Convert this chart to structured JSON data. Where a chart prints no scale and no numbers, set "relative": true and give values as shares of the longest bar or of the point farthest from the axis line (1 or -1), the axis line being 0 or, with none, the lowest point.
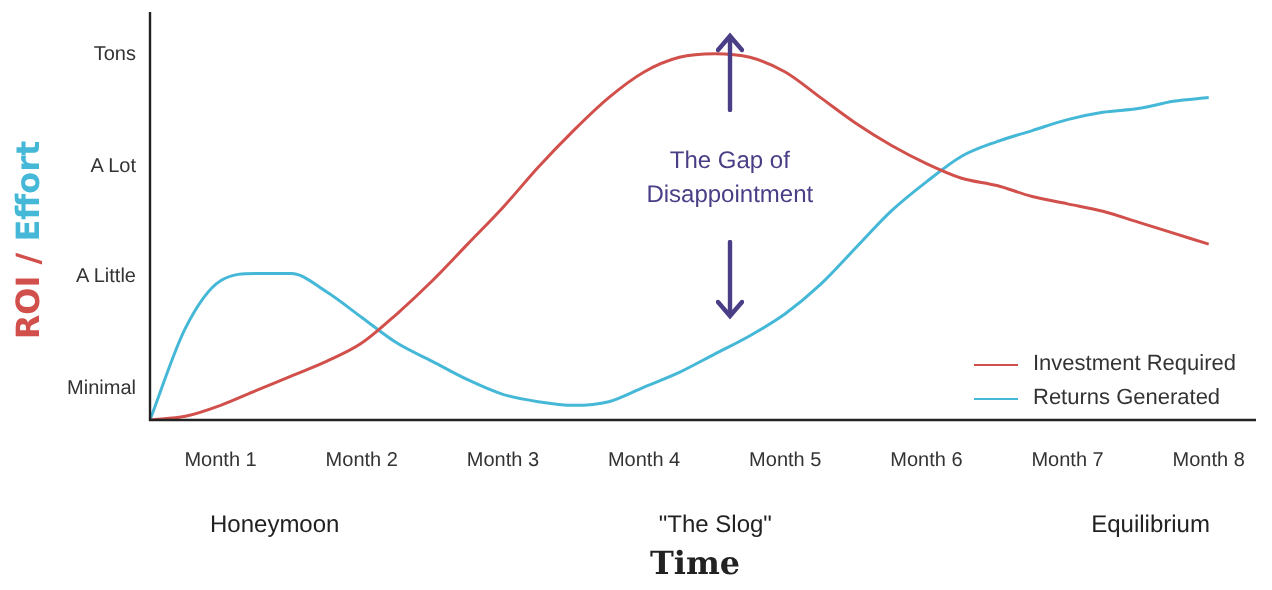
{
  "chart_data": {
    "type": "line",
    "xlabel": "Time",
    "ylabel": "ROI / Effort",
    "relative": true,
    "categories": [
      null,
      null,
      "Month 1",
      null,
      null,
      null,
      "Month 2",
      null,
      null,
      null,
      "Month 3",
      null,
      null,
      null,
      "Month 4",
      null,
      null,
      null,
      "Month 5",
      null,
      null,
      null,
      "Month 6",
      null,
      null,
      null,
      "Month 7",
      null,
      null,
      null,
      "Month 8",
      null
    ],
    "series": [
      {
        "name": "Investment Required",
        "color": "#d2504c",
        "values": [
          0,
          0.01,
          0.04,
          0.08,
          0.12,
          0.16,
          0.21,
          0.29,
          0.38,
          0.48,
          0.58,
          0.69,
          0.79,
          0.88,
          0.95,
          0.99,
          1,
          0.99,
          0.95,
          0.88,
          0.81,
          0.75,
          0.7,
          0.66,
          0.64,
          0.61,
          0.59,
          0.57,
          0.54,
          0.51,
          0.48,
          null
        ]
      },
      {
        "name": "Returns Generated",
        "color": "#45b8d8",
        "values": [
          0,
          0.25,
          0.38,
          0.4,
          0.4,
          0.35,
          0.28,
          0.21,
          0.16,
          0.11,
          0.07,
          0.05,
          0.04,
          0.05,
          0.09,
          0.13,
          0.18,
          0.23,
          0.29,
          0.37,
          0.47,
          0.57,
          0.65,
          0.72,
          0.76,
          0.79,
          0.82,
          0.84,
          0.85,
          0.87,
          0.88,
          null
        ]
      }
    ],
    "annotations": [
      "The Gap of Disappointment",
      "Honeymoon",
      "\"The Slog\"",
      "Equilibrium",
      "Tons",
      "A Lot",
      "A Little",
      "Minimal"
    ],
    "legend": "bottom right",
    "marker": "none",
    "line_style": "solid"
  }
}
